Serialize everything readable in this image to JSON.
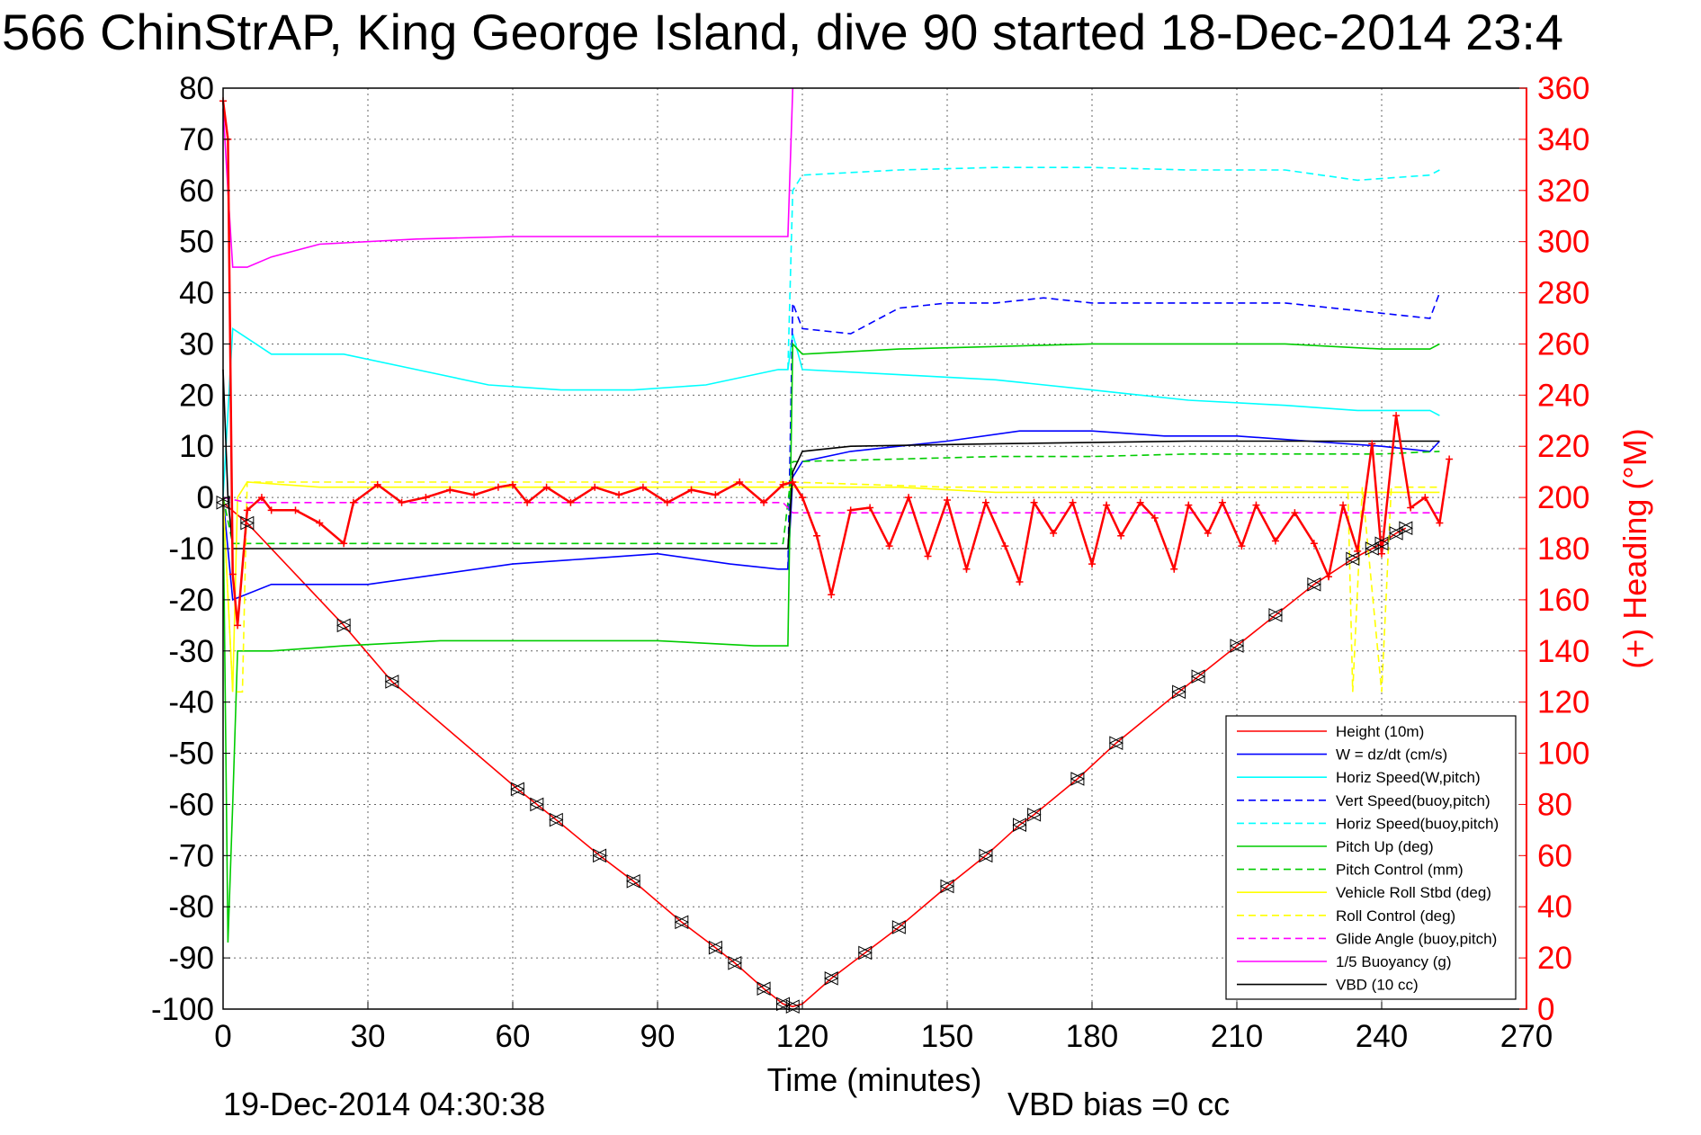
{
  "chart_data": {
    "type": "line",
    "title": "566 ChinStrAP, King George Island, dive 90 started 18-Dec-2014 23:4",
    "xlabel": "Time (minutes)",
    "ylabel_right": "(+) Heading (°M)",
    "xlim": [
      0,
      270
    ],
    "ylim": [
      -100,
      80
    ],
    "ylim_right": [
      0,
      360
    ],
    "x_ticks": [
      "0",
      "30",
      "60",
      "90",
      "120",
      "150",
      "180",
      "210",
      "240",
      "270"
    ],
    "y_ticks": [
      "80",
      "70",
      "60",
      "50",
      "40",
      "30",
      "20",
      "10",
      "0",
      "-10",
      "-20",
      "-30",
      "-40",
      "-50",
      "-60",
      "-70",
      "-80",
      "-90",
      "-100"
    ],
    "y_ticks_right": [
      "360",
      "340",
      "320",
      "300",
      "280",
      "260",
      "240",
      "220",
      "200",
      "180",
      "160",
      "140",
      "120",
      "100",
      "80",
      "60",
      "40",
      "20",
      "0"
    ],
    "grid": true,
    "legend_position": "bottom-right",
    "footer_left": "19-Dec-2014 04:30:38",
    "footer_right": "VBD bias =0 cc",
    "colors": {
      "height": "#ff0000",
      "w": "#0000ff",
      "horiz_speed": "#00ffff",
      "pitch": "#00cc00",
      "roll": "#ffff00",
      "glide": "#ff00ff",
      "buoyancy": "#ff00ff",
      "vbd": "#000000",
      "heading": "#ff0000"
    },
    "series": [
      {
        "name": "Height (10m)",
        "color": "#ff0000",
        "dash": false,
        "points": [
          [
            0,
            -1
          ],
          [
            5,
            -5
          ],
          [
            25,
            -25
          ],
          [
            35,
            -36
          ],
          [
            61,
            -57
          ],
          [
            65,
            -60
          ],
          [
            69,
            -63
          ],
          [
            78,
            -70
          ],
          [
            85,
            -75
          ],
          [
            95,
            -83
          ],
          [
            102,
            -88
          ],
          [
            106,
            -91
          ],
          [
            112,
            -96
          ],
          [
            116,
            -99
          ],
          [
            118,
            -99.5
          ],
          [
            120,
            -99
          ],
          [
            126,
            -94
          ],
          [
            133,
            -89
          ],
          [
            140,
            -84
          ],
          [
            150,
            -76
          ],
          [
            158,
            -70
          ],
          [
            165,
            -64
          ],
          [
            168,
            -62
          ],
          [
            177,
            -55
          ],
          [
            185,
            -48
          ],
          [
            198,
            -38
          ],
          [
            202,
            -35
          ],
          [
            210,
            -29
          ],
          [
            218,
            -23
          ],
          [
            226,
            -17
          ],
          [
            234,
            -12
          ],
          [
            238,
            -10
          ],
          [
            240,
            -9
          ],
          [
            243,
            -7
          ],
          [
            245,
            -6
          ]
        ]
      },
      {
        "name": "W = dz/dt (cm/s)",
        "color": "#0000ff",
        "dash": false,
        "points": [
          [
            0,
            0
          ],
          [
            2,
            -20
          ],
          [
            10,
            -17
          ],
          [
            30,
            -17
          ],
          [
            45,
            -15
          ],
          [
            60,
            -13
          ],
          [
            75,
            -12
          ],
          [
            90,
            -11
          ],
          [
            105,
            -13
          ],
          [
            115,
            -14
          ],
          [
            117,
            -14
          ],
          [
            118,
            4
          ],
          [
            120,
            7
          ],
          [
            130,
            9
          ],
          [
            140,
            10
          ],
          [
            150,
            11
          ],
          [
            165,
            13
          ],
          [
            180,
            13
          ],
          [
            195,
            12
          ],
          [
            210,
            12
          ],
          [
            225,
            11
          ],
          [
            240,
            10
          ],
          [
            250,
            9
          ],
          [
            252,
            11
          ]
        ]
      },
      {
        "name": "Horiz Speed(W,pitch)",
        "color": "#00ffff",
        "dash": false,
        "points": [
          [
            0,
            0
          ],
          [
            2,
            33
          ],
          [
            10,
            28
          ],
          [
            25,
            28
          ],
          [
            40,
            25
          ],
          [
            55,
            22
          ],
          [
            70,
            21
          ],
          [
            85,
            21
          ],
          [
            100,
            22
          ],
          [
            115,
            25
          ],
          [
            117,
            25
          ],
          [
            118,
            32
          ],
          [
            120,
            25
          ],
          [
            140,
            24
          ],
          [
            160,
            23
          ],
          [
            180,
            21
          ],
          [
            200,
            19
          ],
          [
            220,
            18
          ],
          [
            235,
            17
          ],
          [
            250,
            17
          ],
          [
            252,
            16
          ]
        ]
      },
      {
        "name": "Vert Speed(buoy,pitch)",
        "color": "#0000ff",
        "dash": true,
        "points": [
          [
            117,
            -14
          ],
          [
            118,
            38
          ],
          [
            120,
            33
          ],
          [
            130,
            32
          ],
          [
            140,
            37
          ],
          [
            150,
            38
          ],
          [
            160,
            38
          ],
          [
            170,
            39
          ],
          [
            180,
            38
          ],
          [
            190,
            38
          ],
          [
            200,
            38
          ],
          [
            210,
            38
          ],
          [
            220,
            38
          ],
          [
            230,
            37
          ],
          [
            240,
            36
          ],
          [
            250,
            35
          ],
          [
            252,
            40
          ]
        ]
      },
      {
        "name": "Horiz Speed(buoy,pitch)",
        "color": "#00ffff",
        "dash": true,
        "points": [
          [
            117,
            25
          ],
          [
            118,
            60
          ],
          [
            120,
            63
          ],
          [
            140,
            64
          ],
          [
            160,
            64.5
          ],
          [
            180,
            64.5
          ],
          [
            200,
            64
          ],
          [
            220,
            64
          ],
          [
            235,
            62
          ],
          [
            250,
            63
          ],
          [
            252,
            64
          ]
        ]
      },
      {
        "name": "Pitch Up (deg)",
        "color": "#00cc00",
        "dash": false,
        "points": [
          [
            0,
            0
          ],
          [
            1,
            -87
          ],
          [
            2,
            -60
          ],
          [
            3,
            -30
          ],
          [
            10,
            -30
          ],
          [
            25,
            -29
          ],
          [
            45,
            -28
          ],
          [
            70,
            -28
          ],
          [
            90,
            -28
          ],
          [
            110,
            -29
          ],
          [
            116,
            -29
          ],
          [
            117,
            -29
          ],
          [
            118,
            30
          ],
          [
            120,
            28
          ],
          [
            140,
            29
          ],
          [
            160,
            29.5
          ],
          [
            180,
            30
          ],
          [
            200,
            30
          ],
          [
            220,
            30
          ],
          [
            240,
            29
          ],
          [
            250,
            29
          ],
          [
            252,
            30
          ]
        ]
      },
      {
        "name": "Pitch Control (mm)",
        "color": "#00cc00",
        "dash": true,
        "points": [
          [
            0,
            0
          ],
          [
            2,
            -9
          ],
          [
            20,
            -9
          ],
          [
            60,
            -9
          ],
          [
            100,
            -9
          ],
          [
            116,
            -9
          ],
          [
            118,
            7
          ],
          [
            140,
            7.5
          ],
          [
            160,
            8
          ],
          [
            180,
            8
          ],
          [
            200,
            8.5
          ],
          [
            220,
            8.5
          ],
          [
            240,
            8.5
          ],
          [
            252,
            9
          ]
        ]
      },
      {
        "name": "Vehicle Roll Stbd (deg)",
        "color": "#ffff00",
        "dash": false,
        "points": [
          [
            0,
            0
          ],
          [
            2,
            -38
          ],
          [
            3,
            0
          ],
          [
            5,
            3
          ],
          [
            20,
            2
          ],
          [
            40,
            2
          ],
          [
            60,
            2
          ],
          [
            80,
            2
          ],
          [
            100,
            2
          ],
          [
            116,
            2
          ],
          [
            118,
            2
          ],
          [
            140,
            2
          ],
          [
            160,
            1
          ],
          [
            180,
            1
          ],
          [
            200,
            1
          ],
          [
            220,
            1
          ],
          [
            240,
            1
          ],
          [
            252,
            1
          ]
        ]
      },
      {
        "name": "Roll Control (deg)",
        "color": "#ffff00",
        "dash": true,
        "points": [
          [
            0,
            0
          ],
          [
            2,
            -38
          ],
          [
            4,
            -38
          ],
          [
            5,
            3
          ],
          [
            20,
            3
          ],
          [
            60,
            3
          ],
          [
            100,
            3
          ],
          [
            118,
            3
          ],
          [
            150,
            2
          ],
          [
            200,
            2
          ],
          [
            233,
            2
          ],
          [
            234,
            -38
          ],
          [
            236,
            2
          ],
          [
            240,
            -38
          ],
          [
            242,
            2
          ],
          [
            252,
            2
          ]
        ]
      },
      {
        "name": "Glide Angle (buoy,pitch)",
        "color": "#ff00ff",
        "dash": true,
        "points": [
          [
            0,
            0
          ],
          [
            5,
            -1
          ],
          [
            60,
            -1
          ],
          [
            116,
            -1
          ],
          [
            118,
            -3
          ],
          [
            140,
            -3
          ],
          [
            200,
            -3
          ],
          [
            252,
            -3
          ]
        ]
      },
      {
        "name": "1/5 Buoyancy (g)",
        "color": "#ff00ff",
        "dash": false,
        "points": [
          [
            0,
            76
          ],
          [
            1,
            60
          ],
          [
            2,
            45
          ],
          [
            5,
            45
          ],
          [
            10,
            47
          ],
          [
            20,
            49.5
          ],
          [
            40,
            50.5
          ],
          [
            60,
            51
          ],
          [
            80,
            51
          ],
          [
            100,
            51
          ],
          [
            116,
            51
          ],
          [
            117,
            51
          ],
          [
            118,
            80
          ]
        ]
      },
      {
        "name": "VBD (10 cc)",
        "color": "#000000",
        "dash": false,
        "points": [
          [
            0,
            25
          ],
          [
            1,
            0
          ],
          [
            2,
            -10
          ],
          [
            20,
            -10
          ],
          [
            60,
            -10
          ],
          [
            100,
            -10
          ],
          [
            116,
            -10
          ],
          [
            117,
            -10
          ],
          [
            118,
            5
          ],
          [
            120,
            9
          ],
          [
            130,
            10
          ],
          [
            160,
            10.5
          ],
          [
            200,
            11
          ],
          [
            230,
            11
          ],
          [
            252,
            11
          ]
        ]
      }
    ],
    "heading_points": [
      [
        0,
        355
      ],
      [
        1,
        340
      ],
      [
        2,
        170
      ],
      [
        3,
        150
      ],
      [
        5,
        195
      ],
      [
        8,
        200
      ],
      [
        10,
        195
      ],
      [
        15,
        195
      ],
      [
        20,
        190
      ],
      [
        25,
        182
      ],
      [
        27,
        198
      ],
      [
        32,
        205
      ],
      [
        37,
        198
      ],
      [
        42,
        200
      ],
      [
        47,
        203
      ],
      [
        52,
        201
      ],
      [
        57,
        204
      ],
      [
        60,
        205
      ],
      [
        63,
        198
      ],
      [
        67,
        204
      ],
      [
        72,
        198
      ],
      [
        77,
        204
      ],
      [
        82,
        201
      ],
      [
        87,
        204
      ],
      [
        92,
        198
      ],
      [
        97,
        203
      ],
      [
        102,
        201
      ],
      [
        107,
        206
      ],
      [
        112,
        198
      ],
      [
        116,
        205
      ],
      [
        118,
        206
      ],
      [
        120,
        200
      ],
      [
        123,
        185
      ],
      [
        126,
        162
      ],
      [
        130,
        195
      ],
      [
        134,
        196
      ],
      [
        138,
        181
      ],
      [
        142,
        200
      ],
      [
        146,
        177
      ],
      [
        150,
        199
      ],
      [
        154,
        172
      ],
      [
        158,
        198
      ],
      [
        162,
        181
      ],
      [
        165,
        167
      ],
      [
        168,
        198
      ],
      [
        172,
        186
      ],
      [
        176,
        198
      ],
      [
        180,
        174
      ],
      [
        183,
        197
      ],
      [
        186,
        185
      ],
      [
        190,
        198
      ],
      [
        193,
        192
      ],
      [
        197,
        172
      ],
      [
        200,
        197
      ],
      [
        204,
        186
      ],
      [
        207,
        198
      ],
      [
        211,
        181
      ],
      [
        214,
        197
      ],
      [
        218,
        183
      ],
      [
        222,
        194
      ],
      [
        226,
        182
      ],
      [
        229,
        169
      ],
      [
        232,
        197
      ],
      [
        235,
        179
      ],
      [
        238,
        221
      ],
      [
        240,
        178
      ],
      [
        243,
        232
      ],
      [
        246,
        196
      ],
      [
        249,
        200
      ],
      [
        252,
        190
      ],
      [
        254,
        215
      ]
    ],
    "markers": [
      [
        0,
        -1
      ],
      [
        5,
        -5
      ],
      [
        25,
        -25
      ],
      [
        35,
        -36
      ],
      [
        61,
        -57
      ],
      [
        65,
        -60
      ],
      [
        69,
        -63
      ],
      [
        78,
        -70
      ],
      [
        85,
        -75
      ],
      [
        95,
        -83
      ],
      [
        102,
        -88
      ],
      [
        106,
        -91
      ],
      [
        112,
        -96
      ],
      [
        116,
        -99
      ],
      [
        118,
        -99.5
      ],
      [
        126,
        -94
      ],
      [
        133,
        -89
      ],
      [
        140,
        -84
      ],
      [
        150,
        -76
      ],
      [
        158,
        -70
      ],
      [
        165,
        -64
      ],
      [
        168,
        -62
      ],
      [
        177,
        -55
      ],
      [
        185,
        -48
      ],
      [
        198,
        -38
      ],
      [
        202,
        -35
      ],
      [
        210,
        -29
      ],
      [
        218,
        -23
      ],
      [
        226,
        -17
      ],
      [
        234,
        -12
      ],
      [
        238,
        -10
      ],
      [
        240,
        -9
      ],
      [
        243,
        -7
      ],
      [
        245,
        -6
      ]
    ]
  }
}
